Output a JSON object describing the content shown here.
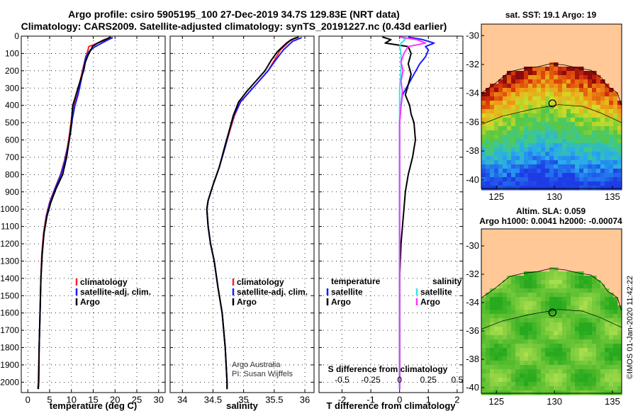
{
  "header": {
    "title_line1": "Argo profile: csiro 5905195_100 27-Dec-2019 34.7S 129.83E (NRT data)",
    "title_line2": "Climatology: CARS2009. Satellite-adjusted climatology: synTS_20191227.nc (0.43d earlier)"
  },
  "depth_axis": {
    "ticks": [
      0,
      100,
      200,
      300,
      400,
      500,
      600,
      700,
      800,
      900,
      1000,
      1100,
      1200,
      1300,
      1400,
      1500,
      1600,
      1700,
      1800,
      1900,
      2000
    ],
    "range": [
      0,
      2060
    ]
  },
  "colors": {
    "climatology": "#ff2020",
    "satellite": "#1a1aff",
    "argo": "#000000",
    "sat_T": "#1a1aff",
    "sat_S": "#33e6e6",
    "argo_S": "#ff33ff",
    "land": "#ffc896"
  },
  "chart_data": [
    {
      "type": "line",
      "id": "temperature",
      "xlabel": "temperature (deg C)",
      "xlim": [
        -1.5,
        31.5
      ],
      "xticks": [
        0,
        5,
        10,
        15,
        20,
        25,
        30
      ],
      "legend": {
        "entries": [
          "climatology",
          "satellite-adj. clim.",
          "Argo"
        ]
      },
      "series": [
        {
          "name": "climatology",
          "color_key": "climatology",
          "points": [
            [
              19.3,
              8
            ],
            [
              17.5,
              20
            ],
            [
              16,
              40
            ],
            [
              14,
              60
            ],
            [
              13.8,
              80
            ],
            [
              13.3,
              120
            ],
            [
              12.7,
              180
            ],
            [
              12.0,
              260
            ],
            [
              11.4,
              340
            ],
            [
              10.6,
              400
            ],
            [
              10.0,
              480
            ],
            [
              9.6,
              560
            ],
            [
              9.1,
              640
            ],
            [
              8.4,
              720
            ],
            [
              7.5,
              800
            ],
            [
              6.2,
              880
            ],
            [
              5.0,
              960
            ],
            [
              4.2,
              1040
            ],
            [
              3.6,
              1140
            ],
            [
              3.2,
              1260
            ],
            [
              3.0,
              1400
            ],
            [
              2.8,
              1600
            ],
            [
              2.6,
              1800
            ],
            [
              2.4,
              2000
            ],
            [
              2.3,
              2040
            ]
          ]
        },
        {
          "name": "satellite-adj. clim.",
          "color_key": "satellite",
          "points": [
            [
              19.5,
              8
            ],
            [
              18.5,
              20
            ],
            [
              17,
              40
            ],
            [
              15.5,
              60
            ],
            [
              14.3,
              80
            ],
            [
              13.3,
              120
            ],
            [
              12.8,
              180
            ],
            [
              12.2,
              260
            ],
            [
              11.5,
              340
            ],
            [
              10.8,
              400
            ],
            [
              10.2,
              480
            ],
            [
              9.8,
              560
            ],
            [
              9.2,
              640
            ],
            [
              8.5,
              720
            ],
            [
              7.6,
              800
            ],
            [
              6.3,
              880
            ],
            [
              5.1,
              960
            ],
            [
              4.3,
              1040
            ],
            [
              3.7,
              1140
            ],
            [
              3.3,
              1260
            ],
            [
              3.0,
              1400
            ],
            [
              2.8,
              1600
            ],
            [
              2.6,
              1800
            ],
            [
              2.5,
              2000
            ],
            [
              2.4,
              2040
            ]
          ]
        },
        {
          "name": "Argo",
          "color_key": "argo",
          "points": [
            [
              19.0,
              5
            ],
            [
              18.6,
              10
            ],
            [
              17.8,
              20
            ],
            [
              16.0,
              40
            ],
            [
              14.8,
              60
            ],
            [
              14.5,
              80
            ],
            [
              14.0,
              100
            ],
            [
              13.2,
              150
            ],
            [
              12.8,
              200
            ],
            [
              12.0,
              260
            ],
            [
              11.5,
              300
            ],
            [
              10.8,
              360
            ],
            [
              10.3,
              400
            ],
            [
              10.0,
              500
            ],
            [
              9.5,
              600
            ],
            [
              8.9,
              700
            ],
            [
              8.0,
              800
            ],
            [
              6.5,
              880
            ],
            [
              5.3,
              960
            ],
            [
              4.4,
              1040
            ],
            [
              3.7,
              1140
            ],
            [
              3.3,
              1260
            ],
            [
              3.0,
              1400
            ],
            [
              2.8,
              1600
            ],
            [
              2.6,
              1800
            ],
            [
              2.5,
              2000
            ],
            [
              2.4,
              2040
            ]
          ]
        }
      ]
    },
    {
      "type": "line",
      "id": "salinity",
      "xlabel": "salinity",
      "xlim": [
        33.8,
        36.15
      ],
      "xticks": [
        34,
        34.5,
        35,
        35.5,
        36
      ],
      "legend": {
        "entries": [
          "climatology",
          "satellite-adj. clim.",
          "Argo"
        ]
      },
      "annotation": [
        "Argo Australia",
        "PI: Susan Wijffels"
      ],
      "series": [
        {
          "name": "climatology",
          "color_key": "climatology",
          "points": [
            [
              35.85,
              8
            ],
            [
              35.75,
              30
            ],
            [
              35.6,
              80
            ],
            [
              35.5,
              140
            ],
            [
              35.4,
              200
            ],
            [
              35.25,
              260
            ],
            [
              35.1,
              320
            ],
            [
              34.95,
              380
            ],
            [
              34.85,
              460
            ],
            [
              34.78,
              540
            ],
            [
              34.7,
              640
            ],
            [
              34.6,
              760
            ],
            [
              34.5,
              860
            ],
            [
              34.42,
              950
            ],
            [
              34.4,
              1000
            ],
            [
              34.42,
              1100
            ],
            [
              34.46,
              1200
            ],
            [
              34.52,
              1300
            ],
            [
              34.58,
              1450
            ],
            [
              34.65,
              1600
            ],
            [
              34.7,
              1800
            ],
            [
              34.73,
              2000
            ],
            [
              34.73,
              2040
            ]
          ]
        },
        {
          "name": "satellite-adj. clim.",
          "color_key": "satellite",
          "points": [
            [
              35.95,
              8
            ],
            [
              35.8,
              30
            ],
            [
              35.65,
              80
            ],
            [
              35.52,
              140
            ],
            [
              35.4,
              200
            ],
            [
              35.25,
              260
            ],
            [
              35.1,
              320
            ],
            [
              34.95,
              380
            ],
            [
              34.84,
              460
            ],
            [
              34.77,
              540
            ],
            [
              34.7,
              640
            ],
            [
              34.6,
              760
            ],
            [
              34.5,
              860
            ],
            [
              34.42,
              950
            ],
            [
              34.4,
              1000
            ],
            [
              34.42,
              1100
            ],
            [
              34.46,
              1200
            ],
            [
              34.52,
              1300
            ],
            [
              34.58,
              1450
            ],
            [
              34.65,
              1600
            ],
            [
              34.7,
              1800
            ],
            [
              34.73,
              2000
            ],
            [
              34.73,
              2040
            ]
          ]
        },
        {
          "name": "Argo",
          "color_key": "argo",
          "points": [
            [
              35.9,
              5
            ],
            [
              35.78,
              20
            ],
            [
              35.7,
              40
            ],
            [
              35.55,
              90
            ],
            [
              35.45,
              140
            ],
            [
              35.35,
              200
            ],
            [
              35.2,
              260
            ],
            [
              35.05,
              320
            ],
            [
              34.92,
              380
            ],
            [
              34.83,
              460
            ],
            [
              34.77,
              540
            ],
            [
              34.69,
              640
            ],
            [
              34.6,
              760
            ],
            [
              34.5,
              860
            ],
            [
              34.42,
              950
            ],
            [
              34.4,
              1000
            ],
            [
              34.42,
              1100
            ],
            [
              34.46,
              1200
            ],
            [
              34.52,
              1300
            ],
            [
              34.58,
              1450
            ],
            [
              34.65,
              1600
            ],
            [
              34.7,
              1800
            ],
            [
              34.73,
              2000
            ],
            [
              34.73,
              2040
            ]
          ]
        }
      ]
    },
    {
      "type": "line",
      "id": "differences",
      "xlabel": "T difference from climatology",
      "top_label": "S difference from climatology",
      "xlim": [
        -2.8,
        2.2
      ],
      "xticks": [
        -2,
        -1,
        0,
        1,
        2
      ],
      "secondary_ticks": {
        "labels": [
          "-0.5",
          "-0.25",
          "0",
          "0.25",
          "0.5"
        ],
        "positions_T": [
          -2,
          -1,
          0,
          1,
          2
        ]
      },
      "legend": {
        "temperature_title": "temperature",
        "salinity_title": "salinity",
        "temperature_entries": [
          "satellite",
          "Argo"
        ],
        "salinity_entries": [
          "satellite",
          "Argo"
        ]
      },
      "series": [
        {
          "name": "T satellite",
          "color_key": "sat_T",
          "points": [
            [
              0.3,
              5
            ],
            [
              0.8,
              20
            ],
            [
              1.2,
              40
            ],
            [
              0.9,
              60
            ],
            [
              1.0,
              80
            ],
            [
              0.9,
              120
            ],
            [
              0.7,
              160
            ],
            [
              0.5,
              220
            ],
            [
              0.3,
              280
            ],
            [
              0.1,
              340
            ],
            [
              0.05,
              400
            ],
            [
              0.0,
              500
            ],
            [
              0.0,
              800
            ],
            [
              0.0,
              1200
            ],
            [
              0.0,
              1600
            ],
            [
              0.0,
              2040
            ]
          ]
        },
        {
          "name": "T Argo",
          "color_key": "argo",
          "points": [
            [
              -0.6,
              5
            ],
            [
              -0.3,
              20
            ],
            [
              -0.5,
              40
            ],
            [
              0.3,
              60
            ],
            [
              0.4,
              100
            ],
            [
              0.3,
              160
            ],
            [
              0.4,
              220
            ],
            [
              0.3,
              280
            ],
            [
              0.2,
              340
            ],
            [
              0.35,
              400
            ],
            [
              0.4,
              450
            ],
            [
              0.5,
              500
            ],
            [
              0.55,
              600
            ],
            [
              0.45,
              700
            ],
            [
              0.3,
              800
            ],
            [
              0.2,
              900
            ],
            [
              0.15,
              1000
            ],
            [
              0.1,
              1100
            ],
            [
              0.05,
              1200
            ],
            [
              0.0,
              1400
            ],
            [
              0.0,
              2040
            ]
          ]
        },
        {
          "name": "S satellite",
          "color_key": "sat_S",
          "points": [
            [
              0.1,
              5
            ],
            [
              0.2,
              20
            ],
            [
              0.05,
              40
            ],
            [
              0.0,
              60
            ],
            [
              0.05,
              100
            ],
            [
              0.05,
              200
            ],
            [
              0.0,
              300
            ],
            [
              0.0,
              2040
            ]
          ]
        },
        {
          "name": "S Argo",
          "color_key": "argo_S",
          "points": [
            [
              0.0,
              5
            ],
            [
              0.6,
              20
            ],
            [
              0.9,
              40
            ],
            [
              0.3,
              60
            ],
            [
              0.15,
              100
            ],
            [
              0.05,
              150
            ],
            [
              0.12,
              200
            ],
            [
              0.05,
              260
            ],
            [
              0.1,
              320
            ],
            [
              0.05,
              400
            ],
            [
              0.0,
              500
            ],
            [
              0.0,
              2040
            ]
          ]
        }
      ]
    },
    {
      "type": "heatmap",
      "id": "sst-map",
      "title": "sat. SST: 19.1 Argo: 19",
      "xticks": [
        125,
        130,
        135
      ],
      "yticks": [
        -30,
        -32,
        -34,
        -36,
        -38,
        -40
      ],
      "xlim": [
        123.7,
        135.8
      ],
      "ylim": [
        -40.6,
        -29.2
      ],
      "marker": {
        "lon": 129.83,
        "lat": -34.7
      }
    },
    {
      "type": "heatmap",
      "id": "sla-map",
      "title_line1": "Altim. SLA: 0.059",
      "title_line2": "Argo h1000: 0.0041 h2000: -0.00074",
      "xticks": [
        125,
        130,
        135
      ],
      "yticks": [
        -30,
        -32,
        -34,
        -36,
        -38,
        -40
      ],
      "xlim": [
        123.7,
        135.8
      ],
      "ylim": [
        -40.4,
        -28.8
      ],
      "marker": {
        "lon": 129.83,
        "lat": -34.7
      }
    }
  ],
  "footer": {
    "side_credit": "©IMOS 01-Jan-2020 11:42:22"
  }
}
